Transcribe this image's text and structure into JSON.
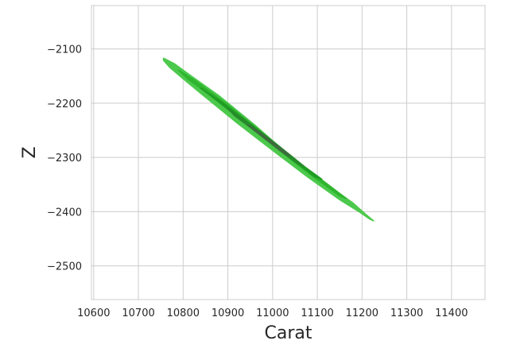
{
  "chart_data": {
    "type": "kde-density",
    "xlabel": "Carat",
    "ylabel": "Z",
    "xlim": [
      10595,
      11475
    ],
    "ylim": [
      -2562,
      -2020
    ],
    "x_ticks": [
      10600,
      10700,
      10800,
      10900,
      11000,
      11100,
      11200,
      11300,
      11400
    ],
    "y_ticks": [
      -2100,
      -2200,
      -2300,
      -2400,
      -2500
    ],
    "x_tick_labels": [
      "10600",
      "10700",
      "10800",
      "10900",
      "11000",
      "11100",
      "11200",
      "11300",
      "11400"
    ],
    "y_tick_labels": [
      "−2100",
      "−2200",
      "−2300",
      "−2400",
      "−2500"
    ],
    "grid": true,
    "colors": {
      "level_1": "#4cc94c",
      "level_2": "#2fb52f",
      "level_3": "#1f9c22",
      "level_4": "#278a2a",
      "level_5": "#3f6b3f",
      "grid": "#cccccc"
    },
    "density_levels": [
      {
        "level": 1,
        "polygon": [
          [
            10756,
            -2117
          ],
          [
            10780,
            -2127
          ],
          [
            10820,
            -2151
          ],
          [
            10880,
            -2186
          ],
          [
            10960,
            -2240
          ],
          [
            11040,
            -2298
          ],
          [
            11120,
            -2349
          ],
          [
            11180,
            -2384
          ],
          [
            11210,
            -2406
          ],
          [
            11226,
            -2417
          ],
          [
            11218,
            -2414
          ],
          [
            11195,
            -2401
          ],
          [
            11150,
            -2378
          ],
          [
            11080,
            -2337
          ],
          [
            11000,
            -2287
          ],
          [
            10920,
            -2236
          ],
          [
            10850,
            -2189
          ],
          [
            10800,
            -2155
          ],
          [
            10770,
            -2134
          ],
          [
            10756,
            -2121
          ]
        ]
      },
      {
        "level": 2,
        "polygon": [
          [
            10790,
            -2139
          ],
          [
            10830,
            -2160
          ],
          [
            10900,
            -2203
          ],
          [
            10980,
            -2256
          ],
          [
            11060,
            -2310
          ],
          [
            11140,
            -2360
          ],
          [
            11165,
            -2376
          ],
          [
            11150,
            -2371
          ],
          [
            11090,
            -2335
          ],
          [
            11010,
            -2284
          ],
          [
            10930,
            -2231
          ],
          [
            10860,
            -2186
          ],
          [
            10810,
            -2155
          ]
        ]
      },
      {
        "level": 3,
        "polygon": [
          [
            10840,
            -2172
          ],
          [
            10890,
            -2200
          ],
          [
            10950,
            -2238
          ],
          [
            11010,
            -2276
          ],
          [
            11070,
            -2316
          ],
          [
            11110,
            -2340
          ],
          [
            11095,
            -2336
          ],
          [
            11040,
            -2302
          ],
          [
            10980,
            -2263
          ],
          [
            10920,
            -2224
          ],
          [
            10865,
            -2188
          ]
        ]
      },
      {
        "level": 4,
        "polygon": [
          [
            10900,
            -2210
          ],
          [
            10940,
            -2233
          ],
          [
            10990,
            -2264
          ],
          [
            11040,
            -2296
          ],
          [
            11070,
            -2316
          ],
          [
            11055,
            -2311
          ],
          [
            11010,
            -2283
          ],
          [
            10960,
            -2251
          ],
          [
            10915,
            -2223
          ]
        ]
      },
      {
        "level": 5,
        "polygon": [
          [
            10945,
            -2240
          ],
          [
            10975,
            -2256
          ],
          [
            11015,
            -2281
          ],
          [
            11040,
            -2297
          ],
          [
            11028,
            -2294
          ],
          [
            10995,
            -2273
          ],
          [
            10960,
            -2251
          ]
        ]
      }
    ]
  }
}
